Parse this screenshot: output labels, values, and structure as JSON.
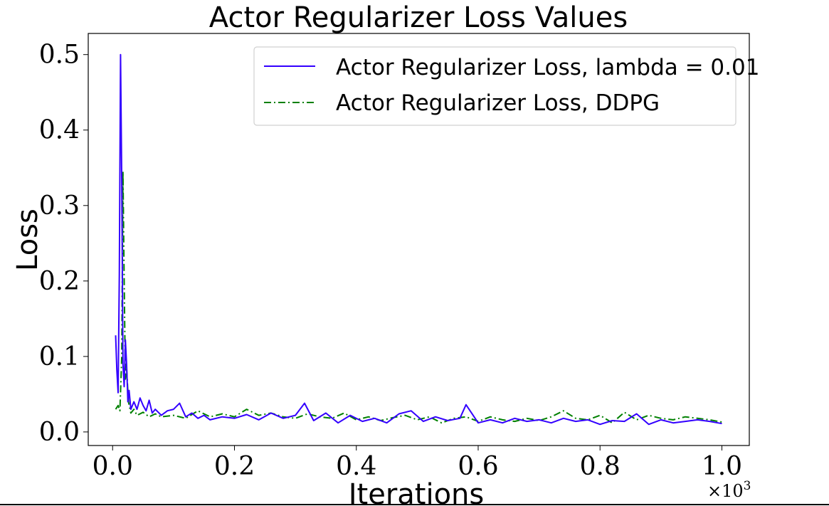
{
  "chart_data": {
    "type": "line",
    "title": "Actor Regularizer Loss Values",
    "xlabel": "Iterations",
    "ylabel": "Loss",
    "x_multiplier_base": "×10",
    "x_multiplier_exp": "3",
    "xlim": [
      -0.04,
      1.045
    ],
    "ylim": [
      -0.018,
      0.528
    ],
    "xticks": [
      0.0,
      0.2,
      0.4,
      0.6,
      0.8,
      1.0
    ],
    "xtick_labels": [
      "0.0",
      "0.2",
      "0.4",
      "0.6",
      "0.8",
      "1.0"
    ],
    "yticks": [
      0.0,
      0.1,
      0.2,
      0.3,
      0.4,
      0.5
    ],
    "ytick_labels": [
      "0.0",
      "0.1",
      "0.2",
      "0.3",
      "0.4",
      "0.5"
    ],
    "grid": false,
    "legend_position": "top-right",
    "series": [
      {
        "name": "Actor Regularizer Loss, lambda = 0.01",
        "color": "#3300ff",
        "style": "solid",
        "x": [
          0.005,
          0.007,
          0.009,
          0.011,
          0.013,
          0.015,
          0.017,
          0.019,
          0.021,
          0.023,
          0.025,
          0.027,
          0.03,
          0.035,
          0.04,
          0.045,
          0.05,
          0.055,
          0.06,
          0.065,
          0.07,
          0.08,
          0.09,
          0.1,
          0.11,
          0.12,
          0.13,
          0.14,
          0.15,
          0.16,
          0.18,
          0.2,
          0.22,
          0.24,
          0.26,
          0.28,
          0.3,
          0.315,
          0.33,
          0.35,
          0.37,
          0.39,
          0.41,
          0.43,
          0.45,
          0.47,
          0.49,
          0.51,
          0.53,
          0.55,
          0.57,
          0.58,
          0.6,
          0.62,
          0.64,
          0.66,
          0.68,
          0.7,
          0.72,
          0.74,
          0.76,
          0.78,
          0.8,
          0.82,
          0.84,
          0.86,
          0.88,
          0.9,
          0.92,
          0.94,
          0.96,
          0.98,
          1.0
        ],
        "values": [
          0.128,
          0.082,
          0.052,
          0.21,
          0.5,
          0.33,
          0.09,
          0.06,
          0.122,
          0.09,
          0.04,
          0.055,
          0.03,
          0.04,
          0.03,
          0.045,
          0.035,
          0.028,
          0.042,
          0.025,
          0.03,
          0.022,
          0.028,
          0.03,
          0.038,
          0.02,
          0.025,
          0.018,
          0.022,
          0.016,
          0.02,
          0.018,
          0.023,
          0.016,
          0.025,
          0.018,
          0.022,
          0.038,
          0.015,
          0.025,
          0.012,
          0.022,
          0.014,
          0.018,
          0.012,
          0.024,
          0.028,
          0.014,
          0.02,
          0.015,
          0.018,
          0.036,
          0.012,
          0.016,
          0.012,
          0.018,
          0.014,
          0.016,
          0.012,
          0.018,
          0.014,
          0.016,
          0.01,
          0.015,
          0.014,
          0.024,
          0.01,
          0.016,
          0.012,
          0.014,
          0.016,
          0.014,
          0.011
        ]
      },
      {
        "name": "Actor Regularizer Loss, DDPG",
        "color": "#008000",
        "style": "dashdot",
        "x": [
          0.005,
          0.009,
          0.012,
          0.015,
          0.017,
          0.019,
          0.021,
          0.023,
          0.026,
          0.03,
          0.035,
          0.04,
          0.05,
          0.06,
          0.07,
          0.08,
          0.1,
          0.12,
          0.14,
          0.16,
          0.18,
          0.2,
          0.22,
          0.24,
          0.26,
          0.28,
          0.3,
          0.32,
          0.34,
          0.36,
          0.38,
          0.4,
          0.42,
          0.44,
          0.46,
          0.48,
          0.5,
          0.52,
          0.54,
          0.56,
          0.58,
          0.6,
          0.62,
          0.64,
          0.66,
          0.68,
          0.7,
          0.72,
          0.74,
          0.76,
          0.78,
          0.8,
          0.82,
          0.84,
          0.86,
          0.88,
          0.9,
          0.92,
          0.94,
          0.96,
          0.98,
          1.0
        ],
        "values": [
          0.03,
          0.035,
          0.028,
          0.1,
          0.345,
          0.2,
          0.07,
          0.085,
          0.04,
          0.025,
          0.03,
          0.022,
          0.026,
          0.02,
          0.024,
          0.02,
          0.022,
          0.018,
          0.028,
          0.02,
          0.024,
          0.02,
          0.03,
          0.022,
          0.025,
          0.02,
          0.018,
          0.024,
          0.02,
          0.018,
          0.025,
          0.016,
          0.02,
          0.015,
          0.019,
          0.022,
          0.016,
          0.02,
          0.012,
          0.018,
          0.02,
          0.014,
          0.02,
          0.016,
          0.014,
          0.018,
          0.015,
          0.02,
          0.028,
          0.018,
          0.016,
          0.022,
          0.012,
          0.026,
          0.016,
          0.022,
          0.018,
          0.016,
          0.02,
          0.018,
          0.016,
          0.013
        ]
      }
    ]
  }
}
